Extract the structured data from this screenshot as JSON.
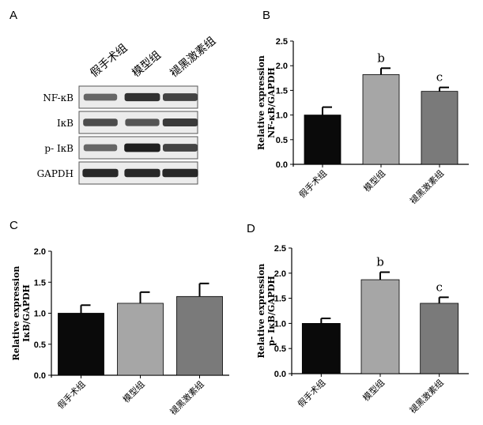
{
  "panels": {
    "A": {
      "letter": "A",
      "lanes": [
        "假手术组",
        "模型组",
        "褪黑激素组"
      ],
      "rows": [
        {
          "label": "NF-κB",
          "intensity": [
            0.55,
            0.85,
            0.75
          ]
        },
        {
          "label": "IκB",
          "intensity": [
            0.7,
            0.65,
            0.8
          ]
        },
        {
          "label": "p- IκB",
          "intensity": [
            0.55,
            0.95,
            0.75
          ]
        },
        {
          "label": "GAPDH",
          "intensity": [
            0.9,
            0.9,
            0.9
          ]
        }
      ]
    }
  },
  "chart_data": [
    {
      "panel": "B",
      "type": "bar",
      "categories": [
        "假手术组",
        "模型组",
        "褪黑激素组"
      ],
      "values": [
        1.0,
        1.82,
        1.48
      ],
      "errors": [
        0.16,
        0.13,
        0.08
      ],
      "sig_labels": [
        "",
        "b",
        "c"
      ],
      "ylabel_line1": "Relative expression",
      "ylabel_line2": "NF-κB/GAPDH",
      "ylim": [
        0,
        2.5
      ],
      "yticks": [
        "0.0",
        "0.5",
        "1.0",
        "1.5",
        "2.0",
        "2.5"
      ],
      "bar_colors": [
        "#0a0a0a",
        "#a6a6a6",
        "#7a7a7a"
      ]
    },
    {
      "panel": "C",
      "type": "bar",
      "categories": [
        "假手术组",
        "模型组",
        "褪黑激素组"
      ],
      "values": [
        1.0,
        1.16,
        1.27
      ],
      "errors": [
        0.13,
        0.18,
        0.21
      ],
      "sig_labels": [
        "",
        "",
        ""
      ],
      "ylabel_line1": "Relative expression",
      "ylabel_line2": "IκB/GAPDH",
      "ylim": [
        0,
        2.0
      ],
      "yticks": [
        "0.0",
        "0.5",
        "1.0",
        "1.5",
        "2.0"
      ],
      "bar_colors": [
        "#0a0a0a",
        "#a6a6a6",
        "#7a7a7a"
      ]
    },
    {
      "panel": "D",
      "type": "bar",
      "categories": [
        "假手术组",
        "模型组",
        "褪黑激素组"
      ],
      "values": [
        1.0,
        1.87,
        1.4
      ],
      "errors": [
        0.1,
        0.15,
        0.12
      ],
      "sig_labels": [
        "",
        "b",
        "c"
      ],
      "ylabel_line1": "Relative expression",
      "ylabel_line2": "p- IκB/GAPDH",
      "ylim": [
        0,
        2.5
      ],
      "yticks": [
        "0.0",
        "0.5",
        "1.0",
        "1.5",
        "2.0",
        "2.5"
      ],
      "bar_colors": [
        "#0a0a0a",
        "#a6a6a6",
        "#7a7a7a"
      ]
    }
  ]
}
